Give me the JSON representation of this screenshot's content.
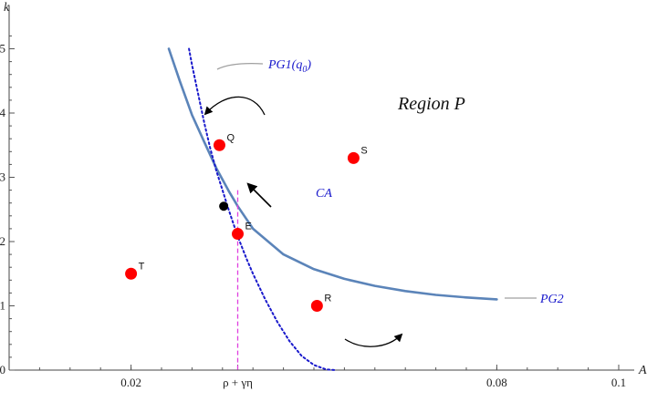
{
  "chart_data": {
    "type": "line",
    "title": "",
    "xlabel": "A",
    "ylabel": "k",
    "xlim": [
      0.0,
      0.1
    ],
    "ylim": [
      0,
      5.5
    ],
    "x_ticks": [
      {
        "value": 0.02,
        "label": "0.02"
      },
      {
        "value": 0.0375,
        "label": "ρ + γη"
      },
      {
        "value": 0.08,
        "label": "0.08"
      },
      {
        "value": 0.1,
        "label": "0.1"
      }
    ],
    "y_ticks": [
      {
        "value": 0,
        "label": "0"
      },
      {
        "value": 1,
        "label": "1"
      },
      {
        "value": 2,
        "label": "2"
      },
      {
        "value": 3,
        "label": "3"
      },
      {
        "value": 4,
        "label": "4"
      },
      {
        "value": 5,
        "label": "5"
      }
    ],
    "series": [
      {
        "name": "PG2",
        "style": "solid",
        "color": "#5b84b9",
        "x": [
          0.0262,
          0.028,
          0.03,
          0.032,
          0.034,
          0.036,
          0.0375,
          0.04,
          0.045,
          0.05,
          0.055,
          0.06,
          0.065,
          0.07,
          0.075,
          0.08
        ],
        "y": [
          5.0,
          4.5,
          3.97,
          3.55,
          3.14,
          2.79,
          2.55,
          2.2,
          1.8,
          1.57,
          1.42,
          1.31,
          1.23,
          1.17,
          1.13,
          1.1
        ]
      },
      {
        "name": "PG1(q0)",
        "style": "dotted",
        "color": "#1a1acc",
        "x": [
          0.0295,
          0.03,
          0.031,
          0.032,
          0.033,
          0.034,
          0.035,
          0.036,
          0.0375,
          0.039,
          0.04,
          0.042,
          0.044,
          0.046,
          0.048,
          0.05,
          0.052,
          0.0535
        ],
        "y": [
          5.0,
          4.75,
          4.3,
          3.85,
          3.45,
          3.1,
          2.8,
          2.5,
          2.08,
          1.72,
          1.5,
          1.1,
          0.75,
          0.45,
          0.22,
          0.08,
          0.01,
          0.0
        ]
      }
    ],
    "vertical_line": {
      "name": "CA",
      "x": 0.0375,
      "y_range": [
        0,
        2.8
      ],
      "color": "#e040e0"
    },
    "points": [
      {
        "label": "E",
        "x": 0.0375,
        "y": 2.12,
        "color": "#ff0000"
      },
      {
        "label": "Q",
        "x": 0.0345,
        "y": 3.5,
        "color": "#ff0000"
      },
      {
        "label": "S",
        "x": 0.0565,
        "y": 3.3,
        "color": "#ff0000"
      },
      {
        "label": "T",
        "x": 0.02,
        "y": 1.5,
        "color": "#ff0000"
      },
      {
        "label": "R",
        "x": 0.0505,
        "y": 1.0,
        "color": "#ff0000"
      }
    ],
    "black_point": {
      "x": 0.0352,
      "y": 2.55
    },
    "annotations": [
      {
        "text": "Region P"
      }
    ],
    "grid": false
  }
}
